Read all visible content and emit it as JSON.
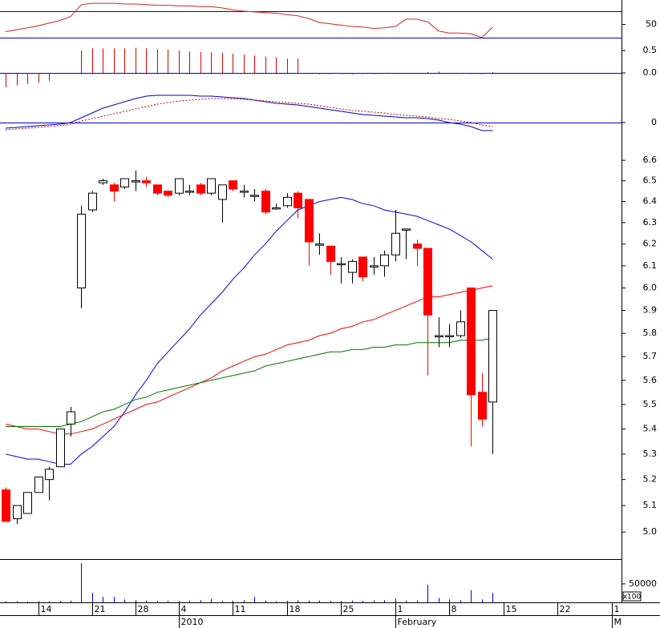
{
  "chart_data": [
    {
      "type": "line",
      "xlim": [
        -0.52,
        56.9
      ],
      "ylim": [
        24,
        87
      ],
      "yticks": [
        50
      ],
      "levels": [
        30,
        70
      ],
      "level_color": "#0000cc",
      "series": [
        {
          "color": "#dd2222",
          "values": [
            39,
            42,
            45,
            48,
            52,
            56,
            62,
            80,
            82,
            82,
            82,
            81,
            81,
            80,
            79,
            79,
            78,
            78,
            77,
            77,
            75,
            72,
            70,
            69,
            68,
            67,
            65,
            63,
            59,
            53,
            51,
            49,
            47,
            46,
            44,
            45,
            47,
            58,
            58,
            54,
            40,
            37,
            37,
            36,
            30,
            46
          ]
        }
      ]
    },
    {
      "type": "bar",
      "xlim": [
        -0.52,
        56.9
      ],
      "ylim": [
        -0.43,
        0.7
      ],
      "yticks": [
        0.5,
        {
          "value": 0,
          "label": "0.0"
        }
      ],
      "levels": [
        0
      ],
      "level_color": "#0000cc",
      "color": "#dd0000",
      "values": [
        -0.32,
        -0.28,
        -0.25,
        -0.22,
        -0.18,
        0,
        0,
        0.5,
        0.55,
        0.55,
        0.55,
        0.55,
        0.56,
        0.55,
        0.53,
        0.52,
        0.5,
        0.48,
        0.47,
        0.46,
        0.45,
        0.43,
        0.41,
        0.39,
        0.37,
        0.35,
        0.32,
        0.32,
        0,
        -0.03,
        -0.03,
        -0.03,
        -0.03,
        -0.03,
        -0.03,
        -0.02,
        0,
        0,
        0,
        0.02,
        0.03,
        -0.02,
        -0.02,
        -0.03,
        -0.03,
        0.02
      ]
    },
    {
      "type": "line",
      "xlim": [
        -0.52,
        56.9
      ],
      "ylim": [
        -0.135,
        0.19
      ],
      "yticks": [
        0
      ],
      "levels": [
        0
      ],
      "level_color": "#0000cc",
      "series": [
        {
          "color": "#0000cc",
          "values": [
            -0.035,
            -0.03,
            -0.025,
            -0.02,
            -0.015,
            -0.01,
            0,
            0.03,
            0.06,
            0.09,
            0.11,
            0.13,
            0.15,
            0.165,
            0.17,
            0.17,
            0.17,
            0.17,
            0.165,
            0.165,
            0.16,
            0.155,
            0.15,
            0.14,
            0.13,
            0.12,
            0.115,
            0.11,
            0.1,
            0.09,
            0.08,
            0.07,
            0.06,
            0.05,
            0.045,
            0.04,
            0.035,
            0.03,
            0.03,
            0.025,
            0.015,
            0,
            -0.01,
            -0.025,
            -0.05,
            -0.05
          ]
        },
        {
          "color": "#cc0000",
          "dash": true,
          "values": [
            -0.045,
            -0.04,
            -0.035,
            -0.03,
            -0.025,
            -0.02,
            -0.01,
            0.01,
            0.025,
            0.04,
            0.055,
            0.07,
            0.085,
            0.1,
            0.115,
            0.125,
            0.135,
            0.14,
            0.145,
            0.15,
            0.15,
            0.148,
            0.145,
            0.14,
            0.135,
            0.13,
            0.125,
            0.12,
            0.115,
            0.105,
            0.095,
            0.085,
            0.075,
            0.07,
            0.065,
            0.06,
            0.05,
            0.045,
            0.04,
            0.035,
            0.025,
            0.02,
            0.01,
            0,
            -0.015,
            -0.025
          ]
        }
      ]
    },
    {
      "type": "candlestick",
      "xlim": [
        -0.52,
        56.9
      ],
      "ylim": [
        4.9,
        6.68
      ],
      "log": true,
      "up_color": "#ffffff",
      "down_color": "#ff0000",
      "yticks": [
        6.6,
        6.5,
        6.4,
        6.3,
        6.2,
        6.1,
        {
          "value": 6,
          "label": "6.0"
        },
        5.9,
        5.8,
        5.7,
        5.6,
        5.5,
        5.4,
        5.3,
        5.2,
        5.1,
        {
          "value": 5,
          "label": "5.0"
        }
      ],
      "xticks": [
        {
          "value": 3,
          "label": "14"
        },
        {
          "value": 8,
          "label": "21"
        },
        {
          "value": 12,
          "label": "28"
        },
        {
          "value": 16,
          "label": "4"
        },
        {
          "value": 21,
          "label": "11"
        },
        {
          "value": 26,
          "label": "18"
        },
        {
          "value": 31,
          "label": "25"
        },
        {
          "value": 36,
          "label": "1"
        },
        {
          "value": 41,
          "label": "8"
        },
        {
          "value": 46,
          "label": "15"
        },
        {
          "value": 51,
          "label": "22"
        },
        {
          "value": 56,
          "label": "1"
        }
      ],
      "month_ticks": [
        {
          "value": 16,
          "label": "2010"
        },
        {
          "value": 36,
          "label": "February"
        },
        {
          "value": 56,
          "label": "M"
        }
      ],
      "open": [
        5.16,
        5.05,
        5.07,
        5.15,
        5.2,
        5.25,
        5.42,
        6.0,
        6.36,
        6.49,
        6.48,
        6.47,
        6.5,
        6.5,
        6.48,
        6.45,
        6.44,
        6.45,
        6.48,
        6.44,
        6.41,
        6.5,
        6.45,
        6.43,
        6.45,
        6.37,
        6.38,
        6.44,
        6.41,
        6.2,
        6.19,
        6.11,
        6.07,
        6.14,
        6.1,
        6.1,
        6.15,
        6.27,
        6.2,
        6.18,
        5.79,
        5.79,
        5.79,
        6.0,
        5.55,
        5.51
      ],
      "high": [
        5.17,
        5.1,
        5.15,
        5.21,
        5.25,
        5.4,
        5.49,
        6.38,
        6.45,
        6.51,
        6.49,
        6.51,
        6.55,
        6.52,
        6.48,
        6.45,
        6.51,
        6.48,
        6.49,
        6.51,
        6.48,
        6.5,
        6.48,
        6.46,
        6.46,
        6.39,
        6.44,
        6.45,
        6.41,
        6.25,
        6.19,
        6.14,
        6.13,
        6.14,
        6.14,
        6.17,
        6.36,
        6.27,
        6.22,
        6.18,
        5.87,
        5.84,
        5.9,
        6.0,
        5.63,
        5.9
      ],
      "low": [
        5.04,
        5.03,
        5.07,
        5.15,
        5.12,
        5.25,
        5.37,
        5.91,
        6.35,
        6.48,
        6.4,
        6.46,
        6.45,
        6.47,
        6.43,
        6.42,
        6.43,
        6.43,
        6.43,
        6.43,
        6.3,
        6.45,
        6.42,
        6.4,
        6.34,
        6.36,
        6.37,
        6.32,
        6.1,
        6.15,
        6.06,
        6.02,
        6.02,
        6.03,
        6.06,
        6.05,
        6.12,
        6.13,
        6.1,
        5.62,
        5.74,
        5.74,
        5.78,
        5.33,
        5.41,
        5.3
      ],
      "close": [
        5.04,
        5.1,
        5.15,
        5.21,
        5.24,
        5.4,
        5.47,
        6.34,
        6.44,
        6.5,
        6.45,
        6.51,
        6.5,
        6.49,
        6.44,
        6.43,
        6.51,
        6.45,
        6.44,
        6.51,
        6.48,
        6.46,
        6.45,
        6.43,
        6.35,
        6.37,
        6.42,
        6.37,
        6.21,
        6.2,
        6.12,
        6.11,
        6.12,
        6.05,
        6.1,
        6.15,
        6.25,
        6.27,
        6.18,
        5.88,
        5.79,
        5.79,
        5.85,
        5.54,
        5.44,
        5.9
      ],
      "series": [
        {
          "color": "#0000ff",
          "values": [
            5.3,
            5.29,
            5.28,
            5.28,
            5.27,
            5.26,
            5.26,
            5.3,
            5.33,
            5.37,
            5.41,
            5.47,
            5.54,
            5.6,
            5.67,
            5.72,
            5.77,
            5.82,
            5.88,
            5.93,
            5.98,
            6.04,
            6.09,
            6.15,
            6.2,
            6.26,
            6.31,
            6.36,
            6.38,
            6.4,
            6.41,
            6.42,
            6.41,
            6.39,
            6.38,
            6.36,
            6.35,
            6.34,
            6.33,
            6.31,
            6.29,
            6.27,
            6.24,
            6.21,
            6.17,
            6.13
          ]
        },
        {
          "color": "#ff0000",
          "values": [
            5.42,
            5.41,
            5.4,
            5.4,
            5.39,
            5.38,
            5.38,
            5.39,
            5.4,
            5.42,
            5.44,
            5.46,
            5.48,
            5.5,
            5.51,
            5.53,
            5.55,
            5.57,
            5.59,
            5.61,
            5.64,
            5.66,
            5.68,
            5.7,
            5.71,
            5.73,
            5.75,
            5.76,
            5.77,
            5.79,
            5.8,
            5.82,
            5.83,
            5.85,
            5.86,
            5.88,
            5.9,
            5.92,
            5.94,
            5.96,
            5.96,
            5.97,
            5.98,
            5.99,
            6.0,
            6.01
          ]
        },
        {
          "color": "#007700",
          "values": [
            5.41,
            5.41,
            5.41,
            5.41,
            5.41,
            5.41,
            5.42,
            5.43,
            5.45,
            5.47,
            5.48,
            5.5,
            5.52,
            5.53,
            5.55,
            5.56,
            5.57,
            5.58,
            5.59,
            5.6,
            5.61,
            5.62,
            5.63,
            5.64,
            5.66,
            5.67,
            5.68,
            5.69,
            5.7,
            5.71,
            5.72,
            5.72,
            5.73,
            5.73,
            5.74,
            5.74,
            5.75,
            5.75,
            5.76,
            5.76,
            5.76,
            5.76,
            5.77,
            5.77,
            5.77,
            5.78
          ]
        }
      ]
    },
    {
      "type": "bar",
      "xlim": [
        -0.52,
        56.9
      ],
      "ylim": [
        0,
        117000
      ],
      "yticks": [
        50000
      ],
      "unit_label": "x100",
      "color": "#0000ff",
      "values": [
        3000,
        3000,
        2000,
        3000,
        3000,
        4000,
        5000,
        106000,
        26000,
        15000,
        15000,
        8000,
        6000,
        5000,
        4000,
        5000,
        4000,
        5000,
        6000,
        9000,
        4000,
        5000,
        6000,
        15000,
        5000,
        3000,
        4000,
        6000,
        5000,
        5000,
        4000,
        4000,
        5000,
        4000,
        5000,
        6000,
        10000,
        5000,
        5000,
        48000,
        12000,
        8000,
        6000,
        33000,
        8000,
        26000
      ]
    }
  ]
}
